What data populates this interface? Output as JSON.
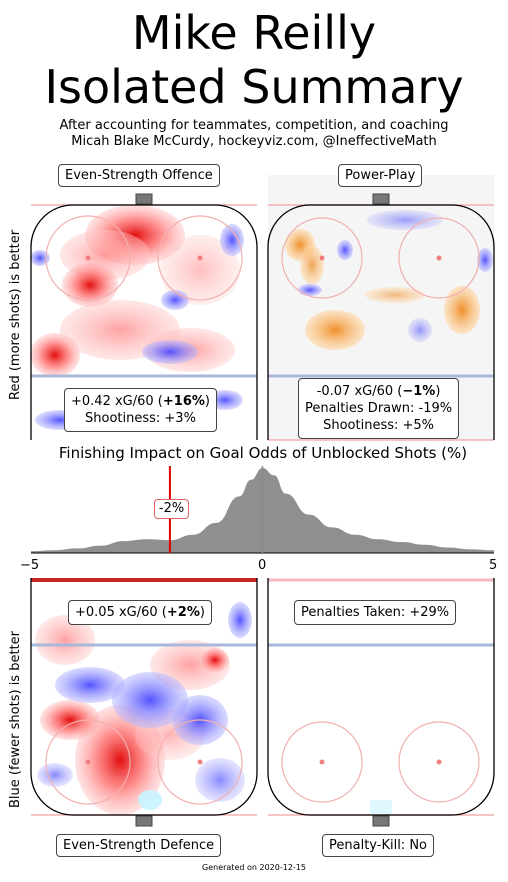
{
  "header": {
    "title_line1": "Mike Reilly",
    "title_line2": "Isolated Summary",
    "subtitle_line1": "After accounting for teammates, competition, and coaching",
    "subtitle_line2": "Micah Blake McCurdy, hockeyviz.com, @IneffectiveMath"
  },
  "panels": {
    "ev_offence": {
      "label": "Even-Strength Offence",
      "stat_prefix": "+0.42 xG/60 (",
      "stat_bold": "+16%",
      "stat_suffix": ")",
      "line2": "Shootiness: +3%"
    },
    "power_play": {
      "label": "Power-Play",
      "stat_prefix": "-0.07 xG/60 (",
      "stat_bold": "−1%",
      "stat_suffix": ")",
      "line2": "Penalties Drawn: -19%",
      "line3": "Shootiness: +5%"
    },
    "ev_defence": {
      "label": "Even-Strength Defence",
      "stat_prefix": "+0.05 xG/60 (",
      "stat_bold": "+2%",
      "stat_suffix": ")"
    },
    "penalty_kill": {
      "label": "Penalty-Kill: No",
      "line1": "Penalties Taken: +29%"
    }
  },
  "axis_labels": {
    "left_top": "Red (more shots) is better",
    "left_bottom": "Blue (fewer shots) is better"
  },
  "chart_data": {
    "type": "area",
    "title": "Finishing Impact on Goal Odds of Unblocked Shots (%)",
    "xlim": [
      -5,
      5
    ],
    "x_ticks": [
      "−5",
      "0",
      "5"
    ],
    "marker_value": -2,
    "marker_label": "-2%",
    "x": [
      -5,
      -4.5,
      -4,
      -3.5,
      -3,
      -2.5,
      -2,
      -1.5,
      -1,
      -0.5,
      -0.25,
      0,
      0.25,
      0.5,
      1,
      1.5,
      2,
      2.5,
      3,
      3.5,
      4,
      4.5,
      5
    ],
    "density": [
      0.02,
      0.03,
      0.05,
      0.08,
      0.13,
      0.15,
      0.14,
      0.2,
      0.33,
      0.62,
      0.8,
      0.93,
      0.85,
      0.65,
      0.42,
      0.28,
      0.2,
      0.15,
      0.12,
      0.09,
      0.06,
      0.04,
      0.03
    ],
    "colors": {
      "fill": "#8f8f8f",
      "marker": "#e00000",
      "zero_line": "#888888"
    }
  },
  "footer": {
    "generated": "Generated on 2020-12-15"
  }
}
